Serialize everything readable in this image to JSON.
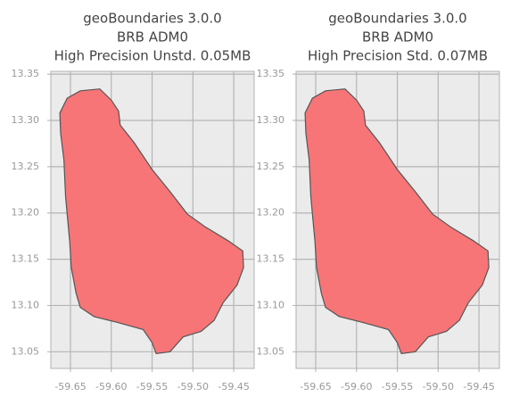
{
  "chart_data": [
    {
      "type": "map",
      "title": [
        "geoBoundaries 3.0.0",
        "BRB ADM0",
        "High Precision Unstd. 0.05MB"
      ],
      "x": [
        -59.663,
        -59.654,
        -59.638,
        -59.614,
        -59.6,
        -59.591,
        -59.589,
        -59.572,
        -59.55,
        -59.528,
        -59.507,
        -59.485,
        -59.457,
        -59.439,
        -59.438,
        -59.446,
        -59.463,
        -59.474,
        -59.49,
        -59.512,
        -59.528,
        -59.545,
        -59.55,
        -59.561,
        -59.594,
        -59.621,
        -59.638,
        -59.643,
        -59.649,
        -59.651,
        -59.654,
        -59.656,
        -59.658,
        -59.662
      ],
      "y": [
        13.308,
        13.324,
        13.332,
        13.334,
        13.322,
        13.31,
        13.295,
        13.276,
        13.247,
        13.223,
        13.199,
        13.185,
        13.17,
        13.159,
        13.141,
        13.122,
        13.103,
        13.084,
        13.072,
        13.066,
        13.05,
        13.048,
        13.06,
        13.074,
        13.082,
        13.088,
        13.098,
        13.113,
        13.141,
        13.17,
        13.199,
        13.218,
        13.257,
        13.286
      ],
      "color": "#f77577",
      "edgecolor": "#555555",
      "xlim": [
        -59.674,
        -59.425
      ],
      "ylim": [
        13.032,
        13.353
      ],
      "xticks": [
        -59.65,
        {
          "value": -59.6,
          "label": "-59.60"
        },
        -59.55,
        {
          "value": -59.5,
          "label": "-59.50"
        },
        -59.45
      ],
      "yticks": [
        13.05,
        {
          "value": 13.1,
          "label": "13.10"
        },
        13.15,
        {
          "value": 13.2,
          "label": "13.20"
        },
        13.25,
        {
          "value": 13.3,
          "label": "13.30"
        },
        13.35
      ],
      "grid": true
    },
    {
      "type": "map",
      "title": [
        "geoBoundaries 3.0.0",
        "BRB ADM0",
        "High Precision Std. 0.07MB"
      ],
      "x": [
        -59.663,
        -59.654,
        -59.638,
        -59.614,
        -59.6,
        -59.591,
        -59.589,
        -59.572,
        -59.55,
        -59.528,
        -59.507,
        -59.485,
        -59.457,
        -59.439,
        -59.438,
        -59.446,
        -59.463,
        -59.474,
        -59.49,
        -59.512,
        -59.528,
        -59.545,
        -59.55,
        -59.561,
        -59.594,
        -59.621,
        -59.638,
        -59.643,
        -59.649,
        -59.651,
        -59.654,
        -59.656,
        -59.658,
        -59.662
      ],
      "y": [
        13.308,
        13.324,
        13.332,
        13.334,
        13.322,
        13.31,
        13.295,
        13.276,
        13.247,
        13.223,
        13.199,
        13.185,
        13.17,
        13.159,
        13.141,
        13.122,
        13.103,
        13.084,
        13.072,
        13.066,
        13.05,
        13.048,
        13.06,
        13.074,
        13.082,
        13.088,
        13.098,
        13.113,
        13.141,
        13.17,
        13.199,
        13.218,
        13.257,
        13.286
      ],
      "color": "#f77577",
      "edgecolor": "#555555",
      "xlim": [
        -59.674,
        -59.425
      ],
      "ylim": [
        13.032,
        13.353
      ],
      "xticks": [
        -59.65,
        {
          "value": -59.6,
          "label": "-59.60"
        },
        -59.55,
        {
          "value": -59.5,
          "label": "-59.50"
        },
        -59.45
      ],
      "yticks": [
        13.05,
        {
          "value": 13.1,
          "label": "13.10"
        },
        13.15,
        {
          "value": 13.2,
          "label": "13.20"
        },
        13.25,
        {
          "value": 13.3,
          "label": "13.30"
        },
        13.35
      ],
      "grid": true
    }
  ]
}
